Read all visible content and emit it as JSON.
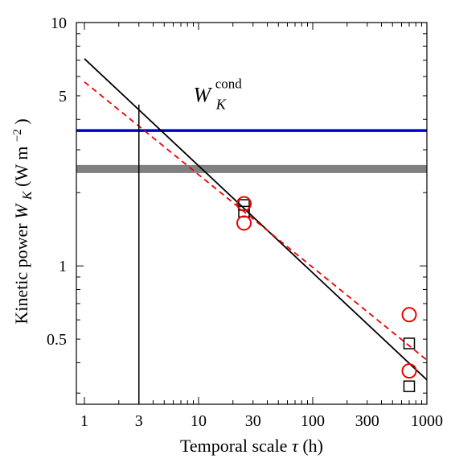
{
  "chart_data": {
    "type": "scatter",
    "xscale": "log",
    "yscale": "log",
    "xlim": [
      0.85,
      1000
    ],
    "ylim": [
      0.27,
      10
    ],
    "x_ticks": [
      1,
      3,
      10,
      30,
      100,
      300,
      1000
    ],
    "x_tick_labels": [
      "1",
      "3",
      "10",
      "30",
      "100",
      "300",
      "1000"
    ],
    "y_ticks": [
      0.5,
      1,
      5,
      10
    ],
    "y_tick_labels": [
      "0.5",
      "1",
      "5",
      "10"
    ],
    "xlabel": {
      "pre": "Temporal scale ",
      "sym": "τ",
      "post": " (h)"
    },
    "ylabel": {
      "pre": "Kinetic power ",
      "sym": "W",
      "sub": "K",
      "unit_pre": " (W m",
      "unit_sup": "−2",
      "unit_post": ")"
    },
    "annotation": {
      "base": "W",
      "sub": "K",
      "sup": "cond",
      "x": 9,
      "y": 5.1
    },
    "series": [
      {
        "kind": "hline",
        "color": "#0000cc",
        "y": 3.6
      },
      {
        "kind": "hline",
        "color": "#808080",
        "y": 2.5,
        "thick": true
      },
      {
        "kind": "line",
        "color": "#000000",
        "x": [
          1,
          1000
        ],
        "y": [
          7.1,
          0.34
        ]
      },
      {
        "kind": "line",
        "color": "#ee0000",
        "dashed": true,
        "x": [
          1,
          1000
        ],
        "y": [
          5.7,
          0.41
        ]
      },
      {
        "kind": "vline",
        "color": "#000000",
        "x": 3
      },
      {
        "kind": "markers",
        "marker": "square",
        "color": "#000000",
        "x": [
          25,
          25,
          700,
          700
        ],
        "y": [
          1.78,
          1.67,
          0.48,
          0.32
        ]
      },
      {
        "kind": "markers",
        "marker": "circle",
        "color": "#ee0000",
        "x": [
          25,
          25,
          700,
          700
        ],
        "y": [
          1.8,
          1.5,
          0.63,
          0.37
        ]
      }
    ]
  }
}
